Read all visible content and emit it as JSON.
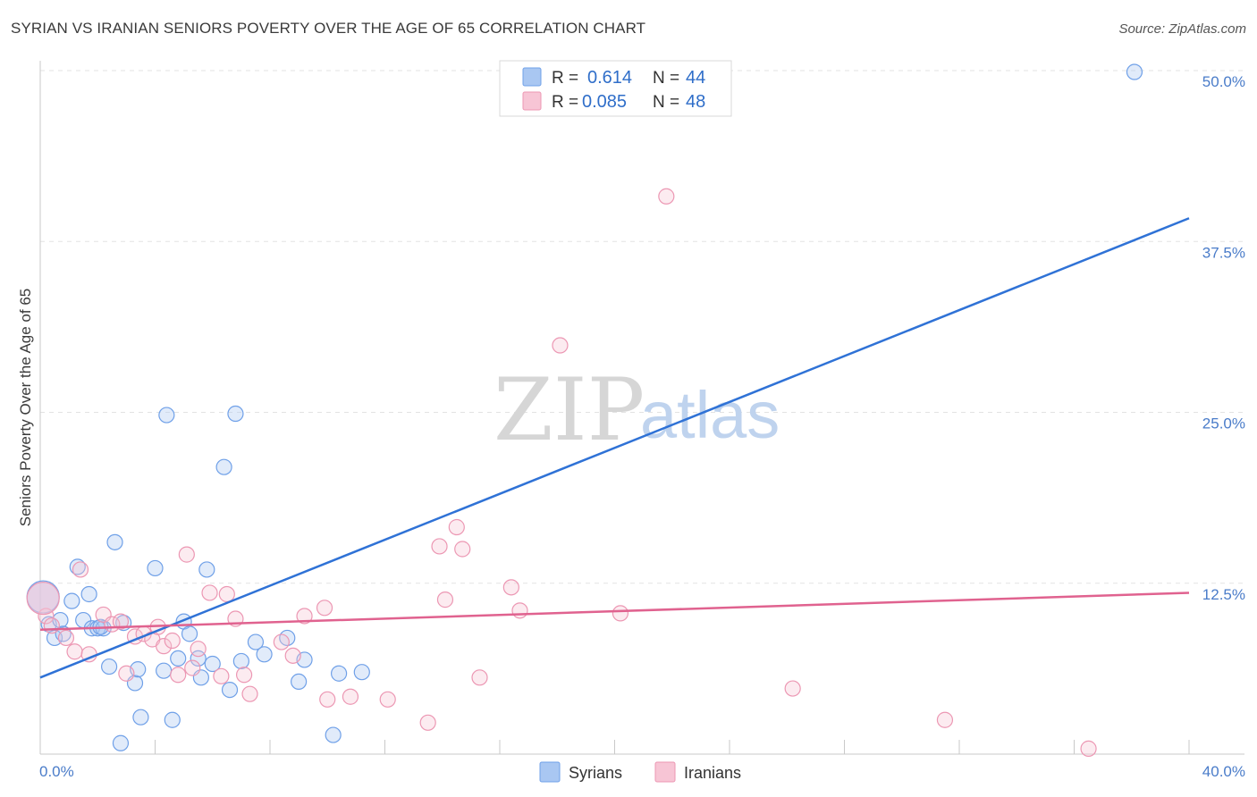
{
  "chart_data": {
    "type": "scatter",
    "title": "SYRIAN VS IRANIAN SENIORS POVERTY OVER THE AGE OF 65 CORRELATION CHART",
    "source": "Source: ZipAtlas.com",
    "ylabel": "Seniors Poverty Over the Age of 65",
    "xlim": [
      0,
      40
    ],
    "ylim": [
      0,
      50
    ],
    "x_tick_labels": [
      "0.0%",
      "40.0%"
    ],
    "y_ticks": [
      12.5,
      25.0,
      37.5,
      50.0
    ],
    "y_tick_labels": [
      "12.5%",
      "25.0%",
      "37.5%",
      "50.0%"
    ],
    "legend": [
      {
        "r_label": "R =",
        "r_value": "0.614",
        "n_label": "N =",
        "n_value": "44"
      },
      {
        "r_label": "R =",
        "r_value": "0.085",
        "n_label": "N =",
        "n_value": "48"
      }
    ],
    "watermark": {
      "zip": "ZIP",
      "atlas": "atlas"
    },
    "series": [
      {
        "name": "Syrians",
        "color": "#6fa0e8",
        "fill": "#a9c7f2",
        "line_color": "#2f72d6",
        "trend": [
          [
            0,
            5.6
          ],
          [
            40,
            39.2
          ]
        ],
        "points": [
          [
            0.1,
            11.5
          ],
          [
            0.3,
            9.5
          ],
          [
            0.5,
            8.5
          ],
          [
            0.7,
            9.8
          ],
          [
            0.8,
            8.8
          ],
          [
            1.1,
            11.2
          ],
          [
            1.3,
            13.7
          ],
          [
            1.5,
            9.8
          ],
          [
            1.7,
            11.7
          ],
          [
            1.8,
            9.2
          ],
          [
            2.0,
            9.2
          ],
          [
            2.2,
            9.2
          ],
          [
            2.4,
            6.4
          ],
          [
            2.6,
            15.5
          ],
          [
            2.8,
            0.8
          ],
          [
            2.9,
            9.6
          ],
          [
            3.3,
            5.2
          ],
          [
            3.4,
            6.2
          ],
          [
            3.5,
            2.7
          ],
          [
            4.0,
            13.6
          ],
          [
            4.3,
            6.1
          ],
          [
            4.4,
            24.8
          ],
          [
            4.6,
            2.5
          ],
          [
            4.8,
            7.0
          ],
          [
            5.0,
            9.7
          ],
          [
            5.2,
            8.8
          ],
          [
            5.5,
            7.0
          ],
          [
            5.6,
            5.6
          ],
          [
            5.8,
            13.5
          ],
          [
            6.0,
            6.6
          ],
          [
            6.4,
            21.0
          ],
          [
            6.6,
            4.7
          ],
          [
            6.8,
            24.9
          ],
          [
            7.0,
            6.8
          ],
          [
            7.5,
            8.2
          ],
          [
            7.8,
            7.3
          ],
          [
            8.6,
            8.5
          ],
          [
            9.0,
            5.3
          ],
          [
            9.2,
            6.9
          ],
          [
            10.2,
            1.4
          ],
          [
            10.4,
            5.9
          ],
          [
            11.2,
            6.0
          ],
          [
            38.1,
            49.9
          ],
          [
            2.1,
            9.3
          ]
        ]
      },
      {
        "name": "Iranians",
        "color": "#ec97b3",
        "fill": "#f7c5d5",
        "line_color": "#e0628f",
        "trend": [
          [
            0,
            9.1
          ],
          [
            40,
            11.8
          ]
        ],
        "points": [
          [
            0.2,
            10.1
          ],
          [
            0.4,
            9.4
          ],
          [
            0.9,
            8.5
          ],
          [
            1.2,
            7.5
          ],
          [
            1.4,
            13.5
          ],
          [
            1.7,
            7.3
          ],
          [
            2.2,
            10.2
          ],
          [
            2.5,
            9.5
          ],
          [
            2.8,
            9.7
          ],
          [
            3.0,
            5.9
          ],
          [
            3.3,
            8.6
          ],
          [
            3.6,
            8.8
          ],
          [
            3.9,
            8.4
          ],
          [
            4.1,
            9.3
          ],
          [
            4.3,
            7.9
          ],
          [
            4.6,
            8.3
          ],
          [
            4.8,
            5.8
          ],
          [
            5.1,
            14.6
          ],
          [
            5.3,
            6.3
          ],
          [
            5.5,
            7.7
          ],
          [
            5.9,
            11.8
          ],
          [
            6.3,
            5.7
          ],
          [
            6.5,
            11.7
          ],
          [
            6.8,
            9.9
          ],
          [
            7.1,
            5.8
          ],
          [
            7.3,
            4.4
          ],
          [
            8.4,
            8.2
          ],
          [
            8.8,
            7.2
          ],
          [
            9.2,
            10.1
          ],
          [
            9.9,
            10.7
          ],
          [
            10.0,
            4.0
          ],
          [
            10.8,
            4.2
          ],
          [
            12.1,
            4.0
          ],
          [
            13.5,
            2.3
          ],
          [
            13.9,
            15.2
          ],
          [
            14.1,
            11.3
          ],
          [
            14.5,
            16.6
          ],
          [
            14.7,
            15.0
          ],
          [
            15.3,
            5.6
          ],
          [
            16.4,
            12.2
          ],
          [
            16.7,
            10.5
          ],
          [
            18.1,
            29.9
          ],
          [
            20.2,
            10.3
          ],
          [
            21.8,
            40.8
          ],
          [
            26.2,
            4.8
          ],
          [
            31.5,
            2.5
          ],
          [
            36.5,
            0.4
          ],
          [
            0.1,
            11.4
          ]
        ]
      }
    ]
  }
}
